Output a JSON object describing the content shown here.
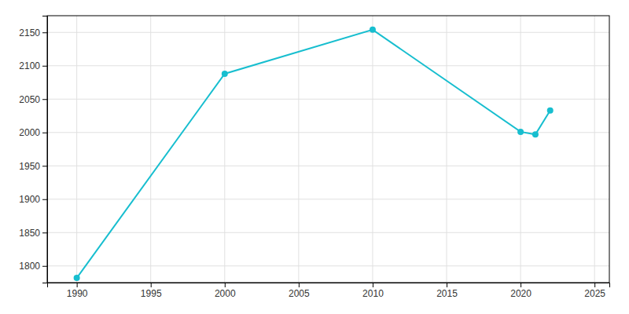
{
  "chart_data": {
    "type": "line",
    "x": [
      1990,
      2000,
      2010,
      2020,
      2021,
      2022
    ],
    "values": [
      1782,
      2088,
      2154,
      2001,
      1997,
      2033
    ],
    "color": "#17BECF",
    "marker": "circle",
    "xlim": [
      1988,
      2026
    ],
    "ylim": [
      1775,
      2175
    ],
    "xticks": [
      1990,
      1995,
      2000,
      2005,
      2010,
      2015,
      2020,
      2025
    ],
    "yticks": [
      1800,
      1850,
      1900,
      1950,
      2000,
      2050,
      2100,
      2150
    ],
    "grid": true
  }
}
